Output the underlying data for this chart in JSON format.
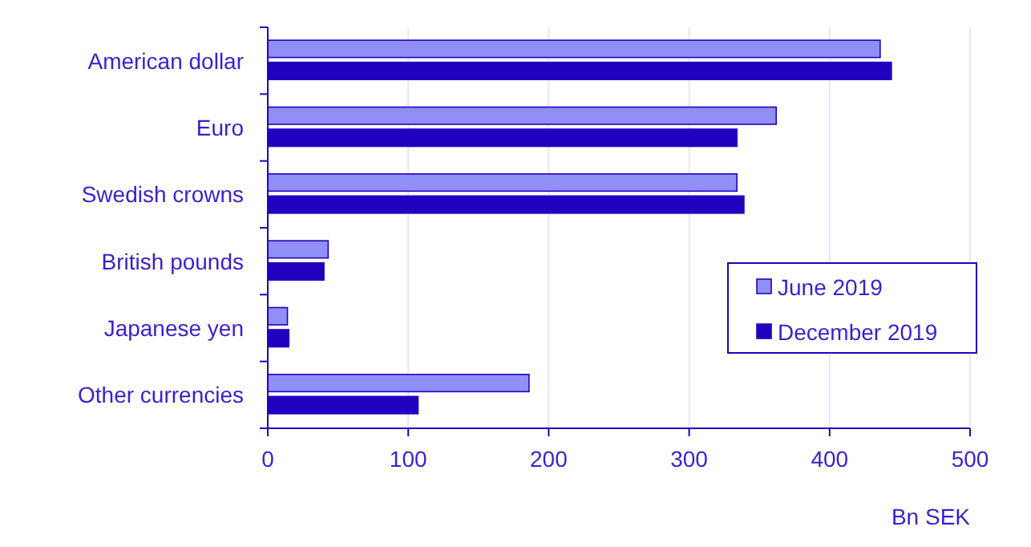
{
  "chart_data": {
    "type": "bar",
    "orientation": "horizontal",
    "xlabel": "Bn SEK",
    "categories": [
      "American dollar",
      "Euro",
      "Swedish crowns",
      "British pounds",
      "Japanese yen",
      "Other currencies"
    ],
    "series": [
      {
        "name": "June 2019",
        "color": "#8f8ff5",
        "values": [
          436,
          362,
          334,
          43,
          14,
          186
        ]
      },
      {
        "name": "December 2019",
        "color": "#2200c0",
        "values": [
          444,
          334,
          339,
          40,
          15,
          107
        ]
      }
    ],
    "xlim": [
      0,
      500
    ],
    "xticks": [
      0,
      100,
      200,
      300,
      400,
      500
    ],
    "grid": "x",
    "legend": "right"
  }
}
